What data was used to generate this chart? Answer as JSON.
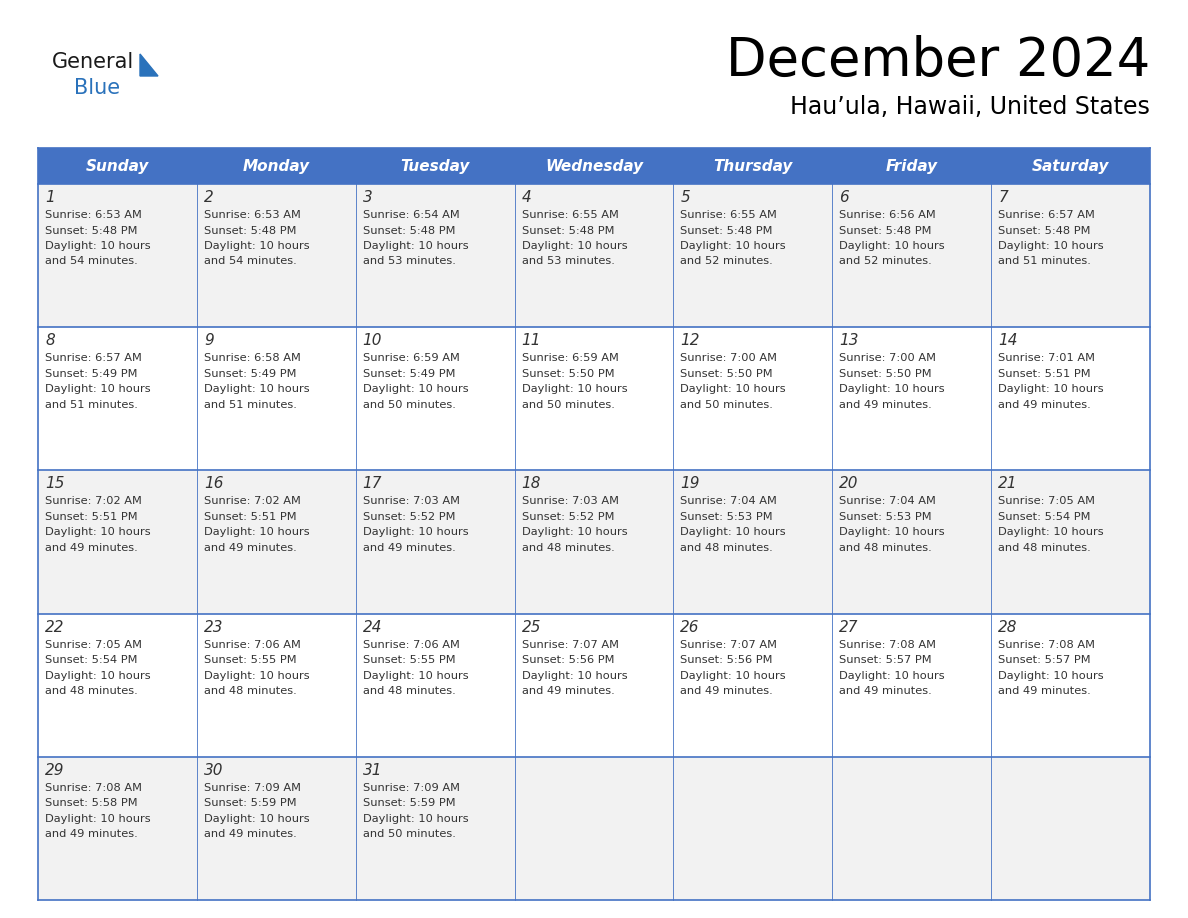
{
  "title": "December 2024",
  "subtitle": "Hau’ula, Hawaii, United States",
  "days_of_week": [
    "Sunday",
    "Monday",
    "Tuesday",
    "Wednesday",
    "Thursday",
    "Friday",
    "Saturday"
  ],
  "header_bg": "#4472C4",
  "header_text_color": "#FFFFFF",
  "cell_bg_odd": "#F2F2F2",
  "cell_bg_even": "#FFFFFF",
  "border_color": "#4472C4",
  "text_color": "#333333",
  "logo_general_color": "#1a1a1a",
  "logo_blue_color": "#2a72bb",
  "calendar_data": [
    [
      {
        "day": 1,
        "sunrise": "6:53 AM",
        "sunset": "5:48 PM",
        "daylight": "10 hours and 54 minutes"
      },
      {
        "day": 2,
        "sunrise": "6:53 AM",
        "sunset": "5:48 PM",
        "daylight": "10 hours and 54 minutes"
      },
      {
        "day": 3,
        "sunrise": "6:54 AM",
        "sunset": "5:48 PM",
        "daylight": "10 hours and 53 minutes"
      },
      {
        "day": 4,
        "sunrise": "6:55 AM",
        "sunset": "5:48 PM",
        "daylight": "10 hours and 53 minutes"
      },
      {
        "day": 5,
        "sunrise": "6:55 AM",
        "sunset": "5:48 PM",
        "daylight": "10 hours and 52 minutes"
      },
      {
        "day": 6,
        "sunrise": "6:56 AM",
        "sunset": "5:48 PM",
        "daylight": "10 hours and 52 minutes"
      },
      {
        "day": 7,
        "sunrise": "6:57 AM",
        "sunset": "5:48 PM",
        "daylight": "10 hours and 51 minutes"
      }
    ],
    [
      {
        "day": 8,
        "sunrise": "6:57 AM",
        "sunset": "5:49 PM",
        "daylight": "10 hours and 51 minutes"
      },
      {
        "day": 9,
        "sunrise": "6:58 AM",
        "sunset": "5:49 PM",
        "daylight": "10 hours and 51 minutes"
      },
      {
        "day": 10,
        "sunrise": "6:59 AM",
        "sunset": "5:49 PM",
        "daylight": "10 hours and 50 minutes"
      },
      {
        "day": 11,
        "sunrise": "6:59 AM",
        "sunset": "5:50 PM",
        "daylight": "10 hours and 50 minutes"
      },
      {
        "day": 12,
        "sunrise": "7:00 AM",
        "sunset": "5:50 PM",
        "daylight": "10 hours and 50 minutes"
      },
      {
        "day": 13,
        "sunrise": "7:00 AM",
        "sunset": "5:50 PM",
        "daylight": "10 hours and 49 minutes"
      },
      {
        "day": 14,
        "sunrise": "7:01 AM",
        "sunset": "5:51 PM",
        "daylight": "10 hours and 49 minutes"
      }
    ],
    [
      {
        "day": 15,
        "sunrise": "7:02 AM",
        "sunset": "5:51 PM",
        "daylight": "10 hours and 49 minutes"
      },
      {
        "day": 16,
        "sunrise": "7:02 AM",
        "sunset": "5:51 PM",
        "daylight": "10 hours and 49 minutes"
      },
      {
        "day": 17,
        "sunrise": "7:03 AM",
        "sunset": "5:52 PM",
        "daylight": "10 hours and 49 minutes"
      },
      {
        "day": 18,
        "sunrise": "7:03 AM",
        "sunset": "5:52 PM",
        "daylight": "10 hours and 48 minutes"
      },
      {
        "day": 19,
        "sunrise": "7:04 AM",
        "sunset": "5:53 PM",
        "daylight": "10 hours and 48 minutes"
      },
      {
        "day": 20,
        "sunrise": "7:04 AM",
        "sunset": "5:53 PM",
        "daylight": "10 hours and 48 minutes"
      },
      {
        "day": 21,
        "sunrise": "7:05 AM",
        "sunset": "5:54 PM",
        "daylight": "10 hours and 48 minutes"
      }
    ],
    [
      {
        "day": 22,
        "sunrise": "7:05 AM",
        "sunset": "5:54 PM",
        "daylight": "10 hours and 48 minutes"
      },
      {
        "day": 23,
        "sunrise": "7:06 AM",
        "sunset": "5:55 PM",
        "daylight": "10 hours and 48 minutes"
      },
      {
        "day": 24,
        "sunrise": "7:06 AM",
        "sunset": "5:55 PM",
        "daylight": "10 hours and 48 minutes"
      },
      {
        "day": 25,
        "sunrise": "7:07 AM",
        "sunset": "5:56 PM",
        "daylight": "10 hours and 49 minutes"
      },
      {
        "day": 26,
        "sunrise": "7:07 AM",
        "sunset": "5:56 PM",
        "daylight": "10 hours and 49 minutes"
      },
      {
        "day": 27,
        "sunrise": "7:08 AM",
        "sunset": "5:57 PM",
        "daylight": "10 hours and 49 minutes"
      },
      {
        "day": 28,
        "sunrise": "7:08 AM",
        "sunset": "5:57 PM",
        "daylight": "10 hours and 49 minutes"
      }
    ],
    [
      {
        "day": 29,
        "sunrise": "7:08 AM",
        "sunset": "5:58 PM",
        "daylight": "10 hours and 49 minutes"
      },
      {
        "day": 30,
        "sunrise": "7:09 AM",
        "sunset": "5:59 PM",
        "daylight": "10 hours and 49 minutes"
      },
      {
        "day": 31,
        "sunrise": "7:09 AM",
        "sunset": "5:59 PM",
        "daylight": "10 hours and 50 minutes"
      },
      null,
      null,
      null,
      null
    ]
  ]
}
